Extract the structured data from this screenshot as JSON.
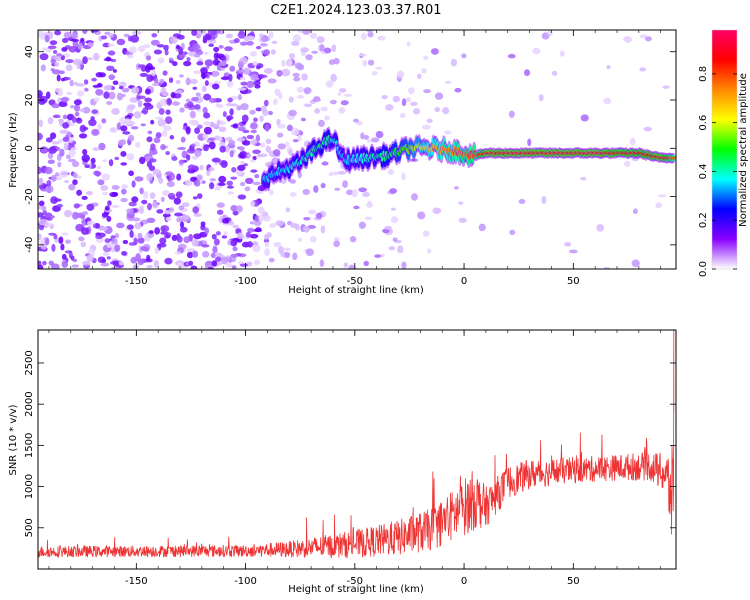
{
  "figure": {
    "title": "C2E1.2024.123.03.37.R01"
  },
  "chart_data": [
    {
      "type": "heatmap",
      "xlabel": "Height of straight line (km)",
      "ylabel": "Frequency (Hz)",
      "xlim": [
        -195,
        97
      ],
      "ylim": [
        -50,
        49
      ],
      "xticks": [
        -150,
        -100,
        -50,
        0,
        50
      ],
      "yticks": [
        -40,
        -20,
        0,
        20,
        40
      ],
      "colorbar": {
        "label": "Normalized spectral amplitude",
        "range": [
          0,
          0.98
        ],
        "ticks": [
          0.0,
          0.2,
          0.4,
          0.6,
          0.8
        ],
        "colormap": [
          "#ffffff",
          "#8800ff",
          "#0000ff",
          "#00ffff",
          "#00ff00",
          "#ffff00",
          "#ff8800",
          "#ff0000",
          "#ff0066"
        ]
      },
      "ridge": {
        "description_points_x": [
          -90,
          -75,
          -65,
          -60,
          -55,
          -45,
          -35,
          -25,
          -15,
          -5,
          5,
          10,
          20,
          40,
          60,
          80,
          90,
          95
        ],
        "description_points_y": [
          -12,
          -6,
          2,
          4,
          -5,
          -4,
          -3,
          0,
          0,
          -1,
          -3,
          -2,
          -2,
          -2,
          -2,
          -2,
          -4,
          -4
        ],
        "amplitude": [
          0.35,
          0.4,
          0.45,
          0.4,
          0.35,
          0.4,
          0.45,
          0.55,
          0.7,
          0.75,
          0.8,
          0.95,
          0.95,
          0.95,
          0.95,
          0.9,
          0.95,
          0.8
        ]
      }
    },
    {
      "type": "line",
      "xlabel": "Height of straight line (km)",
      "ylabel": "SNR (10 * v/v)",
      "xlim": [
        -195,
        97
      ],
      "ylim": [
        0,
        2900
      ],
      "xticks": [
        -150,
        -100,
        -50,
        0,
        50
      ],
      "yticks": [
        500,
        1000,
        1500,
        2000,
        2500
      ],
      "color": "#ee3333",
      "envelope_x": [
        -195,
        -150,
        -100,
        -80,
        -60,
        -45,
        -30,
        -15,
        -5,
        5,
        10,
        20,
        30,
        50,
        70,
        85,
        92,
        95
      ],
      "envelope_mean": [
        210,
        215,
        220,
        240,
        280,
        320,
        380,
        480,
        650,
        850,
        750,
        1050,
        1150,
        1200,
        1230,
        1250,
        1150,
        900
      ],
      "envelope_spread": [
        70,
        70,
        75,
        100,
        150,
        180,
        220,
        260,
        320,
        380,
        250,
        200,
        180,
        160,
        160,
        180,
        250,
        600
      ]
    }
  ]
}
